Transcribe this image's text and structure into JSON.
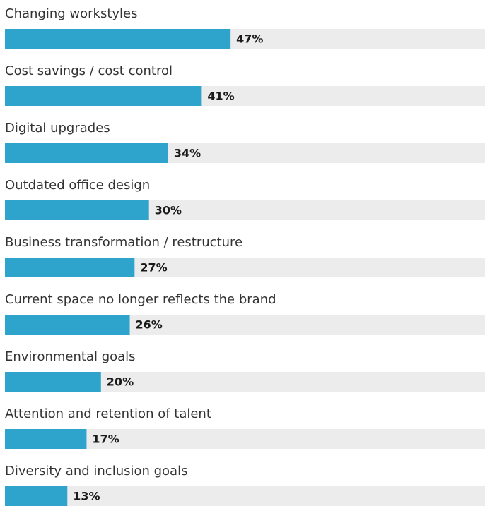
{
  "chart_data": {
    "type": "bar",
    "orientation": "horizontal",
    "categories": [
      "Changing workstyles",
      "Cost savings / cost control",
      "Digital upgrades",
      "Outdated office design",
      "Business transformation / restructure",
      "Current space no longer reflects the brand",
      "Environmental goals",
      "Attention and retention of talent",
      "Diversity and inclusion goals"
    ],
    "values": [
      47,
      41,
      34,
      30,
      27,
      26,
      20,
      17,
      13
    ],
    "value_labels": [
      "47%",
      "41%",
      "34%",
      "30%",
      "27%",
      "26%",
      "20%",
      "17%",
      "13%"
    ],
    "color": "#2ea3cc",
    "track_color": "#ececec",
    "xlim": [
      0,
      100
    ]
  }
}
